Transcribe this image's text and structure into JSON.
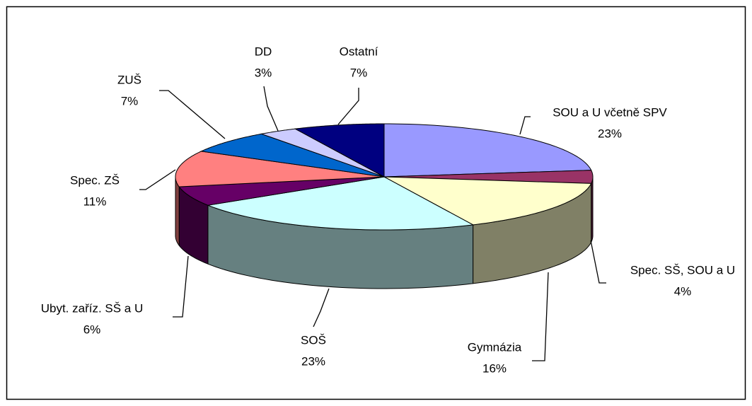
{
  "chart_data": {
    "type": "pie",
    "categories": [
      "SOU a U včetně SPV",
      "Spec. SŠ, SOU a U",
      "Gymnázia",
      "SOŠ",
      "Ubyt. zaříz. SŠ a U",
      "Spec. ZŠ",
      "ZUŠ",
      "DD",
      "Ostatní"
    ],
    "values": [
      23,
      4,
      16,
      23,
      6,
      11,
      7,
      3,
      7
    ],
    "value_labels": [
      "23%",
      "4%",
      "16%",
      "23%",
      "6%",
      "11%",
      "7%",
      "3%",
      "7%"
    ],
    "colors": [
      "#9999ff",
      "#993366",
      "#ffffcc",
      "#ccffff",
      "#660066",
      "#ff8080",
      "#0066cc",
      "#ccccff",
      "#000080"
    ]
  }
}
